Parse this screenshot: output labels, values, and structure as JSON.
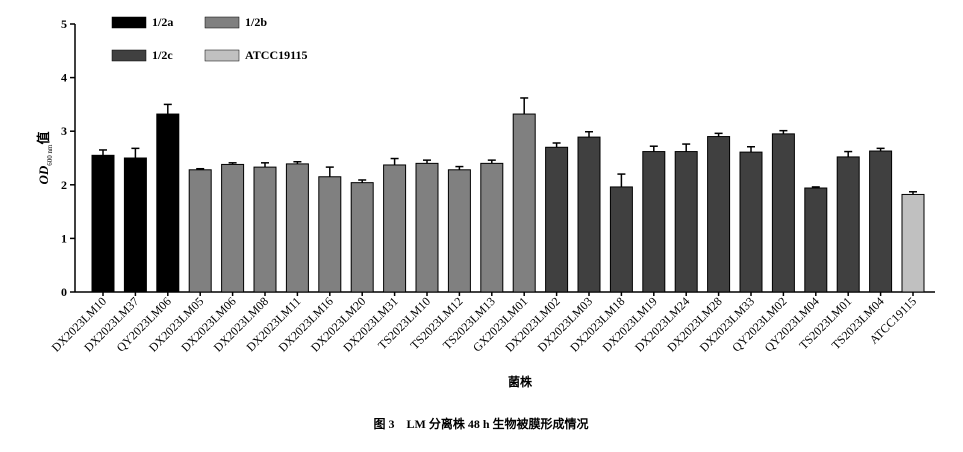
{
  "chart_data": {
    "type": "bar",
    "y_label": [
      "OD",
      "600 nm",
      "值"
    ],
    "x_label": "菌株",
    "caption": "图 3　LM 分离株 48 h 生物被膜形成情况",
    "categories": [
      "DX2023LM10",
      "DX2023LM37",
      "QY2023LM06",
      "DX2023LM05",
      "DX2023LM06",
      "DX2023LM08",
      "DX2023LM11",
      "DX2023LM16",
      "DX2023LM20",
      "DX2023LM31",
      "TS2023LM10",
      "TS2023LM12",
      "TS2023LM13",
      "GX2023LM01",
      "DX2023LM02",
      "DX2023LM03",
      "DX2023LM18",
      "DX2023LM19",
      "DX2023LM24",
      "DX2023LM28",
      "DX2023LM33",
      "QY2023LM02",
      "QY2023LM04",
      "TS2023LM01",
      "TS2023LM04",
      "ATCC19115"
    ],
    "series": [
      {
        "name": "1/2a",
        "color": "#000000",
        "values": [
          2.55,
          2.5,
          3.32,
          null,
          null,
          null,
          null,
          null,
          null,
          null,
          null,
          null,
          null,
          null,
          null,
          null,
          null,
          null,
          null,
          null,
          null,
          null,
          null,
          null,
          null,
          null
        ],
        "errors": [
          0.1,
          0.18,
          0.18,
          null,
          null,
          null,
          null,
          null,
          null,
          null,
          null,
          null,
          null,
          null,
          null,
          null,
          null,
          null,
          null,
          null,
          null,
          null,
          null,
          null,
          null,
          null
        ]
      },
      {
        "name": "1/2b",
        "color": "#808080",
        "values": [
          null,
          null,
          null,
          2.28,
          2.38,
          2.33,
          2.39,
          2.15,
          2.04,
          2.37,
          2.4,
          2.28,
          2.4,
          3.32,
          null,
          null,
          null,
          null,
          null,
          null,
          null,
          null,
          null,
          null,
          null,
          null
        ],
        "errors": [
          null,
          null,
          null,
          0.02,
          0.03,
          0.08,
          0.04,
          0.18,
          0.05,
          0.12,
          0.06,
          0.06,
          0.06,
          0.3,
          null,
          null,
          null,
          null,
          null,
          null,
          null,
          null,
          null,
          null,
          null,
          null
        ]
      },
      {
        "name": "1/2c",
        "color": "#404040",
        "values": [
          null,
          null,
          null,
          null,
          null,
          null,
          null,
          null,
          null,
          null,
          null,
          null,
          null,
          null,
          2.7,
          2.89,
          1.96,
          2.62,
          2.62,
          2.9,
          2.61,
          2.95,
          1.94,
          2.52,
          2.63,
          null
        ],
        "errors": [
          null,
          null,
          null,
          null,
          null,
          null,
          null,
          null,
          null,
          null,
          null,
          null,
          null,
          null,
          0.08,
          0.1,
          0.24,
          0.1,
          0.14,
          0.06,
          0.1,
          0.06,
          0.02,
          0.1,
          0.05,
          null
        ]
      },
      {
        "name": "ATCC19115",
        "color": "#c0c0c0",
        "values": [
          null,
          null,
          null,
          null,
          null,
          null,
          null,
          null,
          null,
          null,
          null,
          null,
          null,
          null,
          null,
          null,
          null,
          null,
          null,
          null,
          null,
          null,
          null,
          null,
          null,
          1.82
        ],
        "errors": [
          null,
          null,
          null,
          null,
          null,
          null,
          null,
          null,
          null,
          null,
          null,
          null,
          null,
          null,
          null,
          null,
          null,
          null,
          null,
          null,
          null,
          null,
          null,
          null,
          null,
          0.05
        ]
      }
    ],
    "ylim": [
      0,
      5
    ],
    "yticks": [
      0,
      1,
      2,
      3,
      4,
      5
    ],
    "grid": false
  }
}
